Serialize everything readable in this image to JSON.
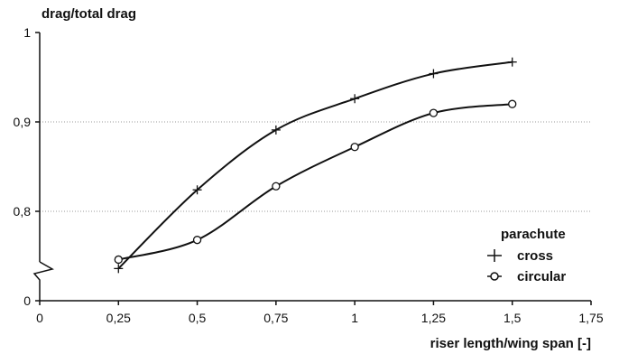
{
  "chart_data": {
    "type": "line",
    "title": "",
    "ylabel": "drag/total drag",
    "xlabel": "riser length/wing span [-]",
    "xlim": [
      0,
      1.75
    ],
    "ylim": [
      0.7,
      1.0
    ],
    "y_axis_break": true,
    "x_ticks": [
      0,
      0.25,
      0.5,
      0.75,
      1,
      1.25,
      1.5,
      1.75
    ],
    "x_tick_labels": [
      "0",
      "0,25",
      "0,5",
      "0,75",
      "1",
      "1,25",
      "1,5",
      "1,75"
    ],
    "y_ticks": [
      1.0,
      0.9,
      0.8
    ],
    "y_tick_labels": [
      "1",
      "0,9",
      "0,8"
    ],
    "y_bottom_label": "0",
    "grid": "dotted horizontal at 0.9 and 0.8",
    "legend": {
      "title": "parachute",
      "placement": "bottom-right",
      "entries": [
        "cross",
        "circular"
      ]
    },
    "series": [
      {
        "name": "cross",
        "marker": "plus",
        "x": [
          0.25,
          0.5,
          0.75,
          1.0,
          1.25,
          1.5
        ],
        "y": [
          0.736,
          0.824,
          0.891,
          0.926,
          0.954,
          0.967
        ]
      },
      {
        "name": "circular",
        "marker": "circle",
        "x": [
          0.25,
          0.5,
          0.75,
          1.0,
          1.25,
          1.5
        ],
        "y": [
          0.746,
          0.768,
          0.828,
          0.872,
          0.91,
          0.92
        ]
      }
    ]
  }
}
